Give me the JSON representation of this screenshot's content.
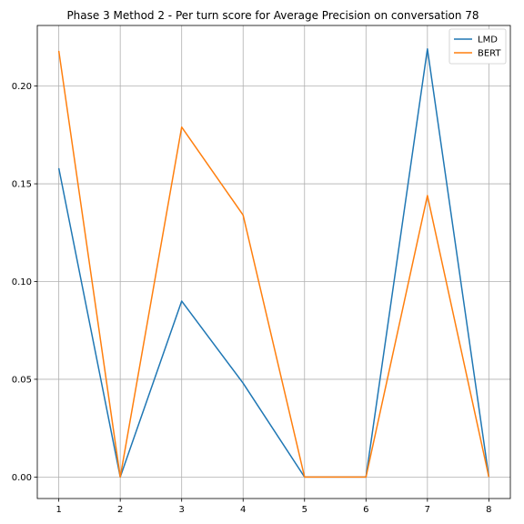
{
  "chart_data": {
    "type": "line",
    "title": "Phase 3 Method 2 - Per turn score for Average Precision on conversation 78",
    "xlabel": "",
    "ylabel": "",
    "x": [
      1,
      2,
      3,
      4,
      5,
      6,
      7,
      8
    ],
    "xlim": [
      0.65,
      8.35
    ],
    "ylim": [
      -0.011,
      0.231
    ],
    "xticks": [
      1,
      2,
      3,
      4,
      5,
      6,
      7,
      8
    ],
    "xtick_labels": [
      "1",
      "2",
      "3",
      "4",
      "5",
      "6",
      "7",
      "8"
    ],
    "yticks": [
      0.0,
      0.05,
      0.1,
      0.15,
      0.2
    ],
    "ytick_labels": [
      "0.00",
      "0.05",
      "0.10",
      "0.15",
      "0.20"
    ],
    "grid": true,
    "legend_position": "top-right",
    "series": [
      {
        "name": "LMD",
        "color": "#1f77b4",
        "values": [
          0.158,
          0.0,
          0.09,
          0.048,
          0.0,
          0.0,
          0.219,
          0.0
        ]
      },
      {
        "name": "BERT",
        "color": "#ff7f0e",
        "values": [
          0.218,
          0.0,
          0.179,
          0.134,
          0.0,
          0.0,
          0.144,
          0.0
        ]
      }
    ]
  }
}
